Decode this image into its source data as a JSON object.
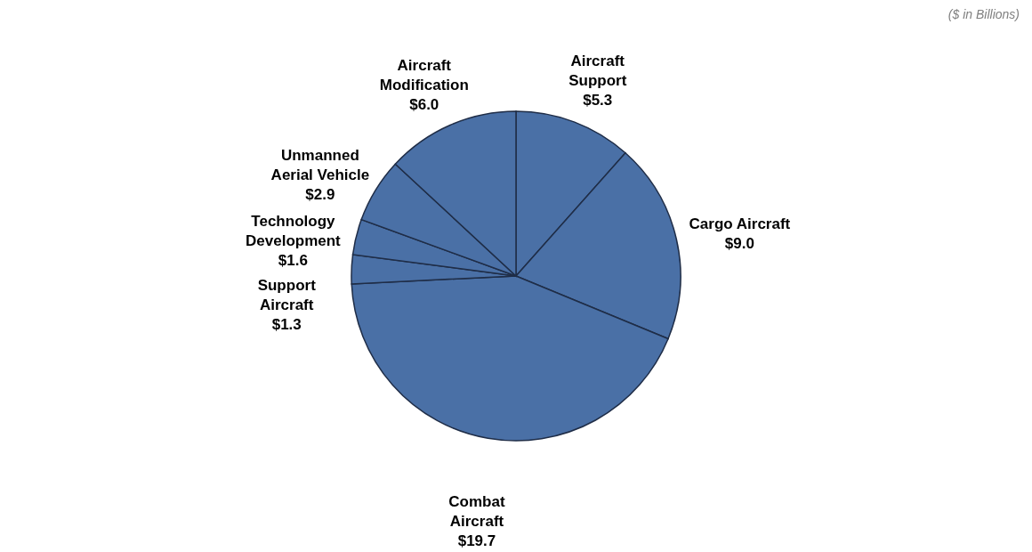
{
  "chart_data": {
    "type": "pie",
    "subtitle": "($ in Billions)",
    "categories": [
      "Aircraft Support",
      "Cargo Aircraft",
      "Combat Aircraft",
      "Support Aircraft",
      "Technology Development",
      "Unmanned Aerial Vehicle",
      "Aircraft Modification"
    ],
    "values": [
      5.3,
      9.0,
      19.7,
      1.3,
      1.6,
      2.9,
      6.0
    ],
    "value_labels": [
      "$5.3",
      "$9.0",
      "$19.7",
      "$1.3",
      "$1.6",
      "$2.9",
      "$6.0"
    ],
    "colors": [
      "#4a70a6",
      "#4a70a6",
      "#4a70a6",
      "#4a70a6",
      "#4a70a6",
      "#4a70a6",
      "#4a70a6"
    ],
    "legend": false
  }
}
